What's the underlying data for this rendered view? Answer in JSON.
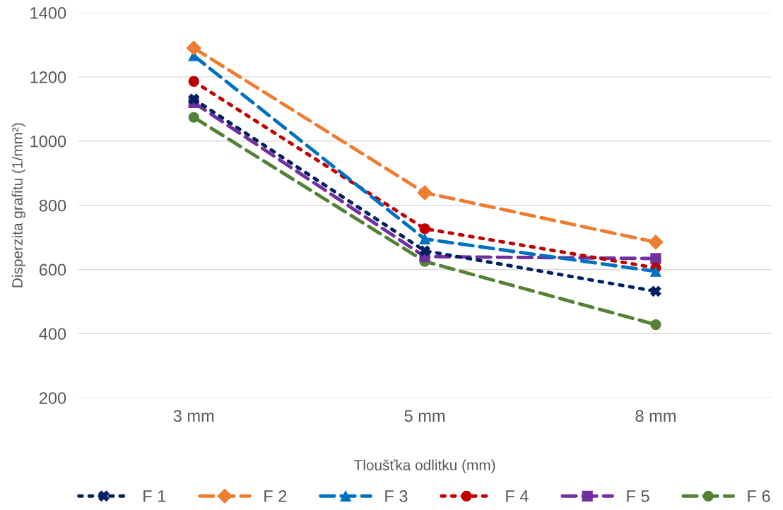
{
  "chart_data": {
    "type": "line",
    "xlabel": "Tloušťka odlitku (mm)",
    "ylabel": "Disperzita grafitu (1/mm²)",
    "categories": [
      "3 mm",
      "5 mm",
      "8 mm"
    ],
    "ylim": [
      200,
      1400
    ],
    "yticks": [
      200,
      400,
      600,
      800,
      1000,
      1200,
      1400
    ],
    "grid": "y",
    "legend": "bottom",
    "series": [
      {
        "name": "F 1",
        "color": "#002060",
        "marker": "cross",
        "line_style": "dotted",
        "values": [
          1131,
          658,
          532
        ]
      },
      {
        "name": "F 2",
        "color": "#ED7D31",
        "marker": "diamond",
        "line_style": "dashed",
        "values": [
          1290,
          839,
          685
        ]
      },
      {
        "name": "F 3",
        "color": "#0070C0",
        "marker": "triangle",
        "line_style": "dashed",
        "values": [
          1266,
          695,
          594
        ]
      },
      {
        "name": "F 4",
        "color": "#C00000",
        "marker": "circle",
        "line_style": "dotted",
        "values": [
          1186,
          727,
          605
        ]
      },
      {
        "name": "F 5",
        "color": "#7030A0",
        "marker": "square",
        "line_style": "dashed",
        "values": [
          1120,
          640,
          634
        ]
      },
      {
        "name": "F 6",
        "color": "#548235",
        "marker": "circle",
        "line_style": "dashed",
        "values": [
          1074,
          625,
          428
        ]
      }
    ]
  }
}
